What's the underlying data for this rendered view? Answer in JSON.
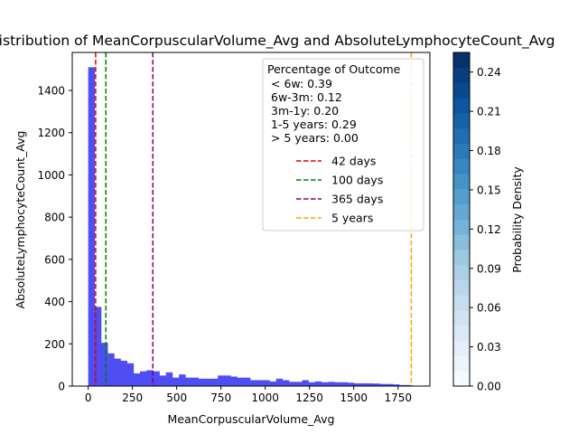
{
  "chart_data": {
    "type": "bar",
    "title": "Joint Distribution of MeanCorpuscularVolume_Avg and AbsoluteLymphocyteCount_Avg",
    "xlabel": "MeanCorpuscularVolume_Avg",
    "ylabel": "AbsoluteLymphocyteCount_Avg",
    "xlim": [
      -90,
      1930
    ],
    "ylim": [
      0,
      1580
    ],
    "xticks": [
      0,
      250,
      500,
      750,
      1000,
      1250,
      1500,
      1750
    ],
    "yticks": [
      0,
      200,
      400,
      600,
      800,
      1000,
      1200,
      1400
    ],
    "bins": {
      "edges_start": 0,
      "bin_width": 36.6,
      "counts": [
        1510,
        375,
        205,
        155,
        130,
        120,
        108,
        60,
        70,
        75,
        70,
        50,
        65,
        40,
        55,
        40,
        40,
        35,
        35,
        35,
        50,
        50,
        45,
        40,
        40,
        28,
        28,
        28,
        22,
        35,
        28,
        20,
        20,
        28,
        18,
        22,
        18,
        20,
        18,
        18,
        16,
        13,
        13,
        13,
        12,
        10,
        10,
        8,
        5,
        5
      ],
      "color": "#4a4af4"
    },
    "vlines": [
      {
        "label": "42 days",
        "x": 42,
        "color": "#e00000"
      },
      {
        "label": "100 days",
        "x": 100,
        "color": "#008000"
      },
      {
        "label": "365 days",
        "x": 365,
        "color": "#800080"
      },
      {
        "label": "5 years",
        "x": 1825,
        "color": "#ffa500"
      }
    ],
    "legend": {
      "title": "Percentage of Outcome",
      "lines": [
        "< 6w: 0.39",
        "6w-3m: 0.12",
        "3m-1y: 0.20",
        "1-5 years: 0.29",
        "> 5 years: 0.00"
      ],
      "placement": "upper-right"
    },
    "colorbar": {
      "label": "Probability Density",
      "min": 0.0,
      "max": 0.255,
      "ticks": [
        "0.00",
        "0.03",
        "0.06",
        "0.09",
        "0.12",
        "0.15",
        "0.18",
        "0.21",
        "0.24"
      ],
      "tick_values": [
        0,
        0.03,
        0.06,
        0.09,
        0.12,
        0.15,
        0.18,
        0.21,
        0.24
      ],
      "levels": 22,
      "cmap": [
        "#f7fbff",
        "#deebf7",
        "#c6dbef",
        "#9ecae1",
        "#6baed6",
        "#4292c6",
        "#2171b5",
        "#08519c",
        "#08306b"
      ]
    }
  }
}
